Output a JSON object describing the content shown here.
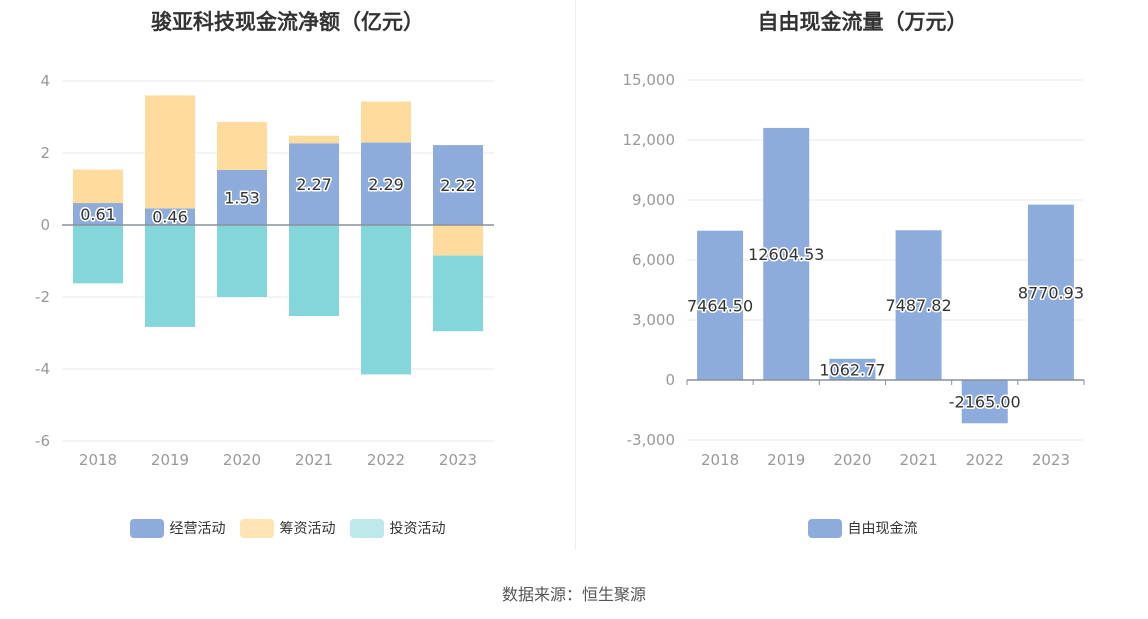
{
  "source_label": "数据来源：恒生聚源",
  "chart_data": [
    {
      "type": "bar",
      "stacked": true,
      "title": "骏亚科技现金流净额（亿元）",
      "categories": [
        "2018",
        "2019",
        "2020",
        "2021",
        "2022",
        "2023"
      ],
      "ylim": [
        -6,
        4
      ],
      "yticks": [
        -6,
        -4,
        -2,
        0,
        2,
        4
      ],
      "series": [
        {
          "name": "经营活动",
          "color": "#8eacdb",
          "values": [
            0.61,
            0.46,
            1.53,
            2.27,
            2.29,
            2.22
          ],
          "labels": [
            "0.61",
            "0.46",
            "1.53",
            "2.27",
            "2.29",
            "2.22"
          ]
        },
        {
          "name": "筹资活动",
          "color": "#ffdc9e",
          "values": [
            0.93,
            3.14,
            1.33,
            0.21,
            1.14,
            -0.85
          ]
        },
        {
          "name": "投资活动",
          "color": "#85d6da",
          "values": [
            -1.62,
            -2.83,
            -2.0,
            -2.53,
            -4.15,
            -2.1
          ]
        }
      ],
      "legend": [
        "经营活动",
        "筹资活动",
        "投资活动"
      ],
      "legend_colors": [
        "#8eacdb",
        "#ffe4b3",
        "#bfe8ea"
      ],
      "legend_position": "bottom-center"
    },
    {
      "type": "bar",
      "title": "自由现金流量（万元）",
      "categories": [
        "2018",
        "2019",
        "2020",
        "2021",
        "2022",
        "2023"
      ],
      "ylim": [
        -3000,
        15000
      ],
      "yticks": [
        -3000,
        0,
        3000,
        6000,
        9000,
        12000,
        15000
      ],
      "ytick_labels": [
        "-3,000",
        "0",
        "3,000",
        "6,000",
        "9,000",
        "12,000",
        "15,000"
      ],
      "series": [
        {
          "name": "自由现金流",
          "color": "#8eacdb",
          "values": [
            7464.5,
            12604.53,
            1062.77,
            7487.82,
            -2165.0,
            8770.93
          ],
          "labels": [
            "7464.50",
            "12604.53",
            "1062.77",
            "7487.82",
            "-2165.00",
            "8770.93"
          ]
        }
      ],
      "legend": [
        "自由现金流"
      ],
      "legend_colors": [
        "#8eacdb"
      ],
      "legend_position": "bottom-center"
    }
  ]
}
